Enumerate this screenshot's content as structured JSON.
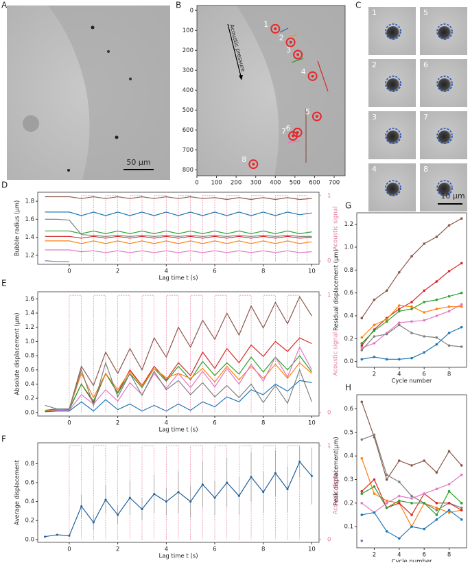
{
  "images": [
    {
      "panel": "A",
      "scale_label": "50 µm"
    },
    {
      "panel": "C",
      "tiles": [
        "1",
        "5",
        "2",
        "6",
        "3",
        "7",
        "4",
        "8"
      ],
      "scale_label": "10 µm"
    }
  ],
  "chart_data": [
    {
      "panel": "B",
      "type": "scatter",
      "x": [
        400,
        478,
        515,
        590,
        612,
        513,
        490,
        288
      ],
      "y": [
        92,
        160,
        222,
        330,
        532,
        613,
        630,
        772
      ],
      "labels": [
        "1",
        "2",
        "3",
        "4",
        "5",
        "6",
        "7",
        "8"
      ],
      "annotation": "Acoustic pressure",
      "color": "#e8262b",
      "xlim": [
        0,
        756
      ],
      "ylim": [
        830,
        -25
      ],
      "xticks": [
        0,
        100,
        200,
        300,
        400,
        500,
        600,
        700
      ],
      "yticks": [
        0,
        100,
        200,
        300,
        400,
        500,
        600,
        700,
        800
      ]
    },
    {
      "panel": "D",
      "type": "line",
      "xlabel": "Lag time t (s)",
      "ylabel": "Bubble radius (µm)",
      "y2label": "Acoustic signal",
      "x": [
        -1,
        -0.5,
        0,
        0.5,
        1,
        1.5,
        2,
        2.5,
        3,
        3.5,
        4,
        4.5,
        5,
        5.5,
        6,
        6.5,
        7,
        7.5,
        8,
        8.5,
        9,
        9.5,
        10
      ],
      "series": [
        {
          "color": "#8c564b",
          "values": [
            1.85,
            1.85,
            1.85,
            1.83,
            1.85,
            1.83,
            1.85,
            1.83,
            1.85,
            1.83,
            1.85,
            1.83,
            1.85,
            1.83,
            1.84,
            1.82,
            1.84,
            1.82,
            1.84,
            1.82,
            1.84,
            1.82,
            1.83
          ]
        },
        {
          "color": "#1f77b4",
          "values": [
            1.68,
            1.68,
            1.68,
            1.64,
            1.68,
            1.64,
            1.68,
            1.64,
            1.68,
            1.64,
            1.68,
            1.64,
            1.68,
            1.64,
            1.68,
            1.64,
            1.68,
            1.64,
            1.68,
            1.64,
            1.68,
            1.65,
            1.67
          ]
        },
        {
          "color": "#7f7f7f",
          "values": [
            1.6,
            1.6,
            1.59,
            1.43,
            1.42,
            1.41,
            1.42,
            1.41,
            1.42,
            1.41,
            1.42,
            1.41,
            1.42,
            1.41,
            1.42,
            1.41,
            1.42,
            1.41,
            1.42,
            1.41,
            1.42,
            1.41,
            1.41
          ]
        },
        {
          "color": "#2ca02c",
          "values": [
            1.47,
            1.47,
            1.47,
            1.44,
            1.47,
            1.44,
            1.47,
            1.44,
            1.47,
            1.44,
            1.47,
            1.44,
            1.47,
            1.44,
            1.47,
            1.44,
            1.47,
            1.44,
            1.47,
            1.44,
            1.47,
            1.44,
            1.46
          ]
        },
        {
          "color": "#d62728",
          "values": [
            1.41,
            1.41,
            1.41,
            1.39,
            1.41,
            1.39,
            1.41,
            1.39,
            1.41,
            1.39,
            1.41,
            1.39,
            1.41,
            1.39,
            1.41,
            1.39,
            1.41,
            1.39,
            1.41,
            1.39,
            1.41,
            1.39,
            1.4
          ]
        },
        {
          "color": "#ff7f0e",
          "values": [
            1.36,
            1.36,
            1.36,
            1.33,
            1.36,
            1.33,
            1.36,
            1.33,
            1.36,
            1.33,
            1.36,
            1.33,
            1.36,
            1.33,
            1.36,
            1.33,
            1.36,
            1.33,
            1.36,
            1.33,
            1.36,
            1.33,
            1.35
          ]
        },
        {
          "color": "#e377c2",
          "values": [
            1.26,
            1.26,
            1.26,
            1.24,
            1.25,
            1.23,
            1.25,
            1.23,
            1.25,
            1.23,
            1.25,
            1.23,
            1.25,
            1.23,
            1.25,
            1.23,
            1.25,
            1.23,
            1.25,
            1.23,
            1.25,
            1.23,
            1.24
          ]
        },
        {
          "color": "#9467bd",
          "values": [
            1.14,
            1.13,
            1.13,
            null,
            null,
            null,
            null,
            null,
            null,
            null,
            null,
            null,
            null,
            null,
            null,
            null,
            null,
            null,
            null,
            null,
            null,
            null,
            null
          ]
        }
      ],
      "pulses": [
        [
          0.5,
          1
        ],
        [
          1.5,
          2
        ],
        [
          2.5,
          3
        ],
        [
          3.5,
          4
        ],
        [
          4.5,
          5
        ],
        [
          5.5,
          6
        ],
        [
          6.5,
          7
        ],
        [
          7.5,
          8
        ],
        [
          8.5,
          9
        ],
        [
          9.4,
          9.8
        ]
      ],
      "xlim": [
        -1.3,
        10.3
      ],
      "ylim": [
        1.1,
        1.9
      ],
      "y2lim": [
        -0.05,
        1.05
      ],
      "xticks": [
        0,
        2,
        4,
        6,
        8,
        10
      ],
      "yticks": [
        1.2,
        1.4,
        1.6,
        1.8
      ],
      "y2ticks": [
        0,
        1
      ],
      "signal_color": "#e377a0"
    },
    {
      "panel": "E",
      "type": "line",
      "xlabel": "Lag time t (s)",
      "ylabel": "Absolute displacement (µm)",
      "y2label": "Acoustic signal",
      "x": [
        -1,
        -0.5,
        0,
        0.5,
        1,
        1.5,
        2,
        2.5,
        3,
        3.5,
        4,
        4.5,
        5,
        5.5,
        6,
        6.5,
        7,
        7.5,
        8,
        8.5,
        9,
        9.5,
        10
      ],
      "series": [
        {
          "color": "#8c564b",
          "values": [
            0.03,
            0.05,
            0.05,
            0.65,
            0.38,
            0.85,
            0.55,
            0.9,
            0.6,
            1.05,
            0.78,
            1.2,
            0.92,
            1.3,
            1.03,
            1.4,
            1.09,
            1.5,
            1.19,
            1.55,
            1.25,
            1.63,
            1.36
          ]
        },
        {
          "color": "#d62728",
          "values": [
            0.02,
            0.04,
            0.05,
            0.4,
            0.14,
            0.55,
            0.28,
            0.6,
            0.38,
            0.65,
            0.46,
            0.7,
            0.52,
            0.85,
            0.62,
            0.9,
            0.7,
            0.95,
            0.79,
            1,
            0.86,
            1.05,
            0.97
          ]
        },
        {
          "color": "#2ca02c",
          "values": [
            0.03,
            0.05,
            0.04,
            0.4,
            0.16,
            0.55,
            0.27,
            0.55,
            0.35,
            0.62,
            0.44,
            0.65,
            0.46,
            0.72,
            0.52,
            0.7,
            0.54,
            0.78,
            0.57,
            0.78,
            0.6,
            0.8,
            0.57
          ]
        },
        {
          "color": "#ff7f0e",
          "values": [
            0.02,
            0.04,
            0.05,
            0.55,
            0.21,
            0.55,
            0.32,
            0.58,
            0.37,
            0.62,
            0.49,
            0.55,
            0.48,
            0.62,
            0.43,
            0.65,
            0.46,
            0.65,
            0.48,
            0.68,
            0.48,
            0.7,
            0.55
          ]
        },
        {
          "color": "#e377c2",
          "values": [
            0.01,
            0.03,
            0.03,
            0.25,
            0.12,
            0.32,
            0.16,
            0.42,
            0.25,
            0.55,
            0.34,
            0.55,
            0.35,
            0.58,
            0.36,
            0.62,
            0.4,
            0.68,
            0.44,
            0.78,
            0.5,
            0.92,
            0.6
          ]
        },
        {
          "color": "#7f7f7f",
          "values": [
            0.1,
            0.05,
            0.05,
            0.6,
            0.1,
            0.7,
            0.22,
            0.55,
            0.24,
            0.58,
            0.32,
            0.45,
            0.25,
            0.42,
            0.22,
            0.38,
            0.21,
            0.4,
            0.14,
            0.38,
            0.13,
            0.6,
            0.15
          ]
        },
        {
          "color": "#1f77b4",
          "values": [
            0.01,
            0.02,
            0.02,
            0.15,
            0.02,
            0.18,
            0.04,
            0.12,
            0.02,
            0.1,
            0.02,
            0.12,
            0.03,
            0.15,
            0.08,
            0.22,
            0.15,
            0.32,
            0.25,
            0.4,
            0.3,
            0.45,
            0.42
          ]
        }
      ],
      "pulses": [
        [
          0,
          0.5
        ],
        [
          1,
          1.5
        ],
        [
          2,
          2.5
        ],
        [
          3,
          3.5
        ],
        [
          4,
          4.5
        ],
        [
          5,
          5.5
        ],
        [
          6,
          6.5
        ],
        [
          7,
          7.5
        ],
        [
          8,
          8.5
        ],
        [
          9,
          9.5
        ]
      ],
      "xlim": [
        -1.3,
        10.3
      ],
      "ylim": [
        -0.05,
        1.7
      ],
      "y2lim": [
        -0.03,
        1.03
      ],
      "xticks": [
        0,
        2,
        4,
        6,
        8,
        10
      ],
      "yticks": [
        {
          "value": 0,
          "label": "0.0"
        },
        0.2,
        0.4,
        0.6,
        0.8,
        {
          "value": 1,
          "label": "1.0"
        },
        1.2,
        1.4,
        1.6
      ],
      "y2ticks": [
        0,
        1
      ],
      "signal_color": "#e377a0"
    },
    {
      "panel": "F",
      "type": "errorbar",
      "xlabel": "Lag time t (s)",
      "ylabel": "Average displacement",
      "y2label": "Acoustic signal",
      "x": [
        -1,
        -0.5,
        0,
        0.5,
        1,
        1.5,
        2,
        2.5,
        3,
        3.5,
        4,
        4.5,
        5,
        5.5,
        6,
        6.5,
        7,
        7.5,
        8,
        8.5,
        9,
        9.5,
        10
      ],
      "series": [
        {
          "color": "#1f5f9a",
          "values": [
            0.03,
            0.05,
            0.04,
            0.35,
            0.18,
            0.42,
            0.26,
            0.44,
            0.32,
            0.48,
            0.4,
            0.5,
            0.4,
            0.58,
            0.44,
            0.6,
            0.46,
            0.66,
            0.5,
            0.7,
            0.53,
            0.82,
            0.67
          ],
          "errors": [
            0.01,
            0.01,
            0.01,
            0.12,
            0.08,
            0.15,
            0.1,
            0.18,
            0.12,
            0.2,
            0.14,
            0.22,
            0.16,
            0.24,
            0.18,
            0.26,
            0.2,
            0.26,
            0.22,
            0.24,
            0.24,
            0.16,
            0.3
          ]
        }
      ],
      "error_color": "#999999",
      "pulses": [
        [
          0,
          0.5
        ],
        [
          1,
          1.5
        ],
        [
          2,
          2.5
        ],
        [
          3,
          3.5
        ],
        [
          4,
          4.5
        ],
        [
          5,
          5.5
        ],
        [
          6,
          6.5
        ],
        [
          7,
          7.5
        ],
        [
          8,
          8.5
        ],
        [
          9,
          9.5
        ]
      ],
      "xlim": [
        -1.3,
        10.3
      ],
      "ylim": [
        -0.03,
        1.02
      ],
      "y2lim": [
        -0.03,
        1.03
      ],
      "xticks": [
        0,
        2,
        4,
        6,
        8,
        10
      ],
      "yticks": [
        {
          "value": 0,
          "label": "0.0"
        },
        0.2,
        0.4,
        0.6,
        0.8
      ],
      "y2ticks": [
        0,
        1
      ],
      "signal_color": "#e377a0"
    },
    {
      "panel": "G",
      "type": "line",
      "markers": true,
      "xlabel": "Cycle number",
      "ylabel": "Residual displacement (µm)",
      "x": [
        1,
        2,
        3,
        4,
        5,
        6,
        7,
        8,
        9
      ],
      "series": [
        {
          "color": "#8c564b",
          "values": [
            0.38,
            0.54,
            0.62,
            0.78,
            0.92,
            1.03,
            1.09,
            1.19,
            1.25
          ]
        },
        {
          "color": "#d62728",
          "values": [
            0.14,
            0.28,
            0.38,
            0.46,
            0.52,
            0.62,
            0.7,
            0.79,
            0.86
          ]
        },
        {
          "color": "#2ca02c",
          "values": [
            0.16,
            0.27,
            0.35,
            0.44,
            0.46,
            0.52,
            0.54,
            0.57,
            0.6
          ]
        },
        {
          "color": "#ff7f0e",
          "values": [
            0.21,
            0.32,
            0.37,
            0.49,
            0.48,
            0.43,
            0.46,
            0.48,
            0.48
          ]
        },
        {
          "color": "#e377c2",
          "values": [
            0.12,
            0.16,
            0.25,
            0.34,
            0.35,
            0.36,
            0.4,
            0.44,
            0.5
          ]
        },
        {
          "color": "#7f7f7f",
          "values": [
            0.1,
            0.22,
            0.24,
            0.32,
            0.25,
            0.22,
            0.21,
            0.14,
            0.13
          ]
        },
        {
          "color": "#1f77b4",
          "values": [
            0.02,
            0.04,
            0.02,
            0.02,
            0.03,
            0.08,
            0.15,
            0.25,
            0.3
          ]
        }
      ],
      "xlim": [
        0.6,
        9.4
      ],
      "ylim": [
        -0.05,
        1.3
      ],
      "xticks": [
        2,
        4,
        6,
        8
      ],
      "yticks": [
        {
          "value": 0,
          "label": "0.0"
        },
        0.2,
        0.4,
        0.6,
        0.8,
        {
          "value": 1,
          "label": "1.0"
        },
        1.2
      ]
    },
    {
      "panel": "H",
      "type": "line",
      "markers": true,
      "xlabel": "Cycle number",
      "ylabel": "Peak displacement(µm)",
      "x": [
        1,
        2,
        3,
        4,
        5,
        6,
        7,
        8,
        9
      ],
      "series": [
        {
          "color": "#8c564b",
          "values": [
            0.63,
            0.48,
            0.3,
            0.38,
            0.36,
            0.38,
            0.33,
            0.42,
            0.36
          ]
        },
        {
          "color": "#7f7f7f",
          "values": [
            0.47,
            0.49,
            0.32,
            0.29,
            0.23,
            0.2,
            0.17,
            0.2,
            0.18
          ]
        },
        {
          "color": "#ff7f0e",
          "values": [
            0.39,
            0.24,
            0.21,
            0.2,
            0.1,
            0.2,
            0.18,
            0.16,
            0.17
          ]
        },
        {
          "color": "#d62728",
          "values": [
            0.25,
            0.3,
            0.18,
            0.2,
            0.15,
            0.24,
            0.2,
            0.2,
            0.17
          ]
        },
        {
          "color": "#2ca02c",
          "values": [
            0.24,
            0.27,
            0.18,
            0.21,
            0.2,
            0.2,
            0.15,
            0.25,
            0.2
          ]
        },
        {
          "color": "#e377c2",
          "values": [
            0.2,
            0.16,
            0.2,
            0.23,
            0.22,
            0.24,
            0.26,
            0.28,
            0.32
          ]
        },
        {
          "color": "#1f77b4",
          "values": [
            0.15,
            0.16,
            0.08,
            0.05,
            0.1,
            0.09,
            0.13,
            0.17,
            0.13
          ]
        },
        {
          "color": "#9467bd",
          "values": [
            0.04,
            null,
            null,
            null,
            null,
            null,
            null,
            null,
            null
          ]
        }
      ],
      "xlim": [
        0.6,
        9.4
      ],
      "ylim": [
        0.01,
        0.66
      ],
      "xticks": [
        2,
        4,
        6,
        8
      ],
      "yticks": [
        0.1,
        0.2,
        0.3,
        0.4,
        0.5,
        0.6
      ]
    }
  ]
}
